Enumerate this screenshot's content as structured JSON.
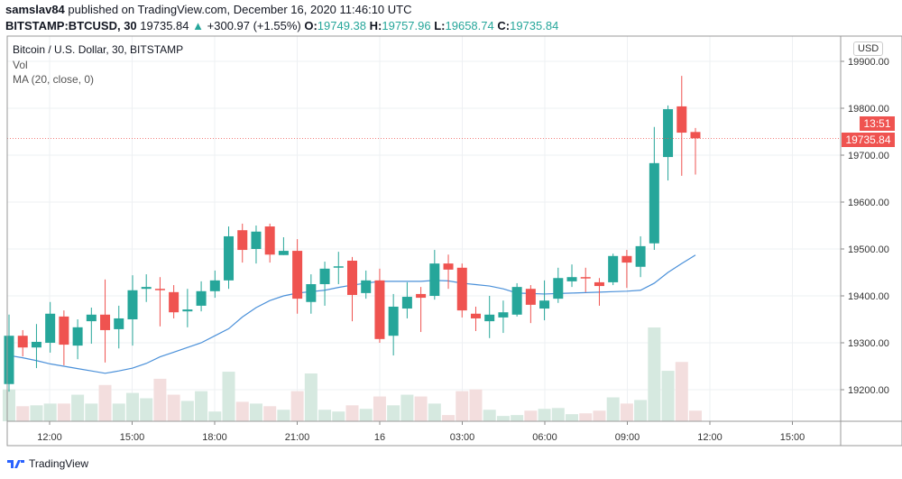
{
  "header": {
    "author": "samslav84",
    "published": "published on TradingView.com, December 16, 2020 11:46:10 UTC",
    "symbol": "BITSTAMP:BTCUSD, 30",
    "last": "19735.84",
    "change": "+300.97 (+1.55%)",
    "o_label": "O:",
    "o": "19749.38",
    "h_label": "H:",
    "h": "19757.96",
    "l_label": "L:",
    "l": "19658.74",
    "c_label": "C:",
    "c": "19735.84"
  },
  "legend": {
    "title": "Bitcoin / U.S. Dollar, 30, BITSTAMP",
    "vol": "Vol",
    "ma": "MA (20, close, 0)"
  },
  "currency": "USD",
  "price_label": "19735.84",
  "countdown": "13:51",
  "logo_text": "TradingView",
  "colors": {
    "up": "#26a69a",
    "down": "#ef5350",
    "ma": "#4a90d9",
    "up_vol": "#d6e9e0",
    "down_vol": "#f3dede"
  },
  "chart_data": {
    "type": "candlestick",
    "interval_minutes": 30,
    "ylim": [
      19130,
      19960
    ],
    "y_ticks": [
      "19200.00",
      "19300.00",
      "19400.00",
      "19500.00",
      "19600.00",
      "19700.00",
      "19800.00",
      "19900.00"
    ],
    "x_ticks": [
      "12:00",
      "15:00",
      "18:00",
      "21:00",
      "16",
      "03:00",
      "06:00",
      "09:00",
      "12:00",
      "15:00"
    ],
    "first_candle": "Dec 15 10:30",
    "grid": true,
    "candles": [
      [
        19212,
        19360,
        19196,
        19315
      ],
      [
        19315,
        19327,
        19271,
        19290
      ],
      [
        19290,
        19340,
        19246,
        19302
      ],
      [
        19300,
        19387,
        19279,
        19362
      ],
      [
        19356,
        19369,
        19252,
        19296
      ],
      [
        19294,
        19350,
        19265,
        19333
      ],
      [
        19346,
        19375,
        19298,
        19360
      ],
      [
        19360,
        19435,
        19258,
        19327
      ],
      [
        19329,
        19379,
        19288,
        19352
      ],
      [
        19350,
        19444,
        19294,
        19412
      ],
      [
        19415,
        19446,
        19387,
        19419
      ],
      [
        19415,
        19440,
        19335,
        19413
      ],
      [
        19408,
        19423,
        19352,
        19365
      ],
      [
        19367,
        19415,
        19333,
        19371
      ],
      [
        19379,
        19431,
        19367,
        19410
      ],
      [
        19410,
        19454,
        19396,
        19433
      ],
      [
        19433,
        19548,
        19415,
        19527
      ],
      [
        19540,
        19554,
        19471,
        19498
      ],
      [
        19500,
        19550,
        19469,
        19537
      ],
      [
        19548,
        19554,
        19471,
        19488
      ],
      [
        19487,
        19525,
        19487,
        19496
      ],
      [
        19496,
        19521,
        19362,
        19394
      ],
      [
        19387,
        19446,
        19362,
        19425
      ],
      [
        19425,
        19473,
        19379,
        19458
      ],
      [
        19462,
        19494,
        19425,
        19463
      ],
      [
        19475,
        19483,
        19346,
        19402
      ],
      [
        19406,
        19454,
        19394,
        19433
      ],
      [
        19433,
        19458,
        19300,
        19308
      ],
      [
        19315,
        19404,
        19273,
        19377
      ],
      [
        19373,
        19429,
        19352,
        19398
      ],
      [
        19404,
        19419,
        19323,
        19396
      ],
      [
        19400,
        19498,
        19392,
        19469
      ],
      [
        19469,
        19488,
        19415,
        19456
      ],
      [
        19460,
        19469,
        19354,
        19369
      ],
      [
        19362,
        19377,
        19325,
        19352
      ],
      [
        19346,
        19400,
        19310,
        19360
      ],
      [
        19354,
        19390,
        19321,
        19365
      ],
      [
        19360,
        19427,
        19356,
        19419
      ],
      [
        19415,
        19423,
        19342,
        19381
      ],
      [
        19373,
        19433,
        19348,
        19390
      ],
      [
        19394,
        19460,
        19385,
        19438
      ],
      [
        19431,
        19467,
        19419,
        19440
      ],
      [
        19440,
        19460,
        19408,
        19438
      ],
      [
        19429,
        19438,
        19379,
        19421
      ],
      [
        19429,
        19490,
        19423,
        19485
      ],
      [
        19485,
        19498,
        19417,
        19471
      ],
      [
        19462,
        19527,
        19440,
        19506
      ],
      [
        19512,
        19760,
        19498,
        19683
      ],
      [
        19696,
        19806,
        19646,
        19798
      ],
      [
        19804,
        19869,
        19656,
        19748
      ],
      [
        19749.38,
        19757.96,
        19658.74,
        19735.84
      ]
    ],
    "volume": [
      36,
      17,
      18,
      20,
      20,
      30,
      20,
      41,
      20,
      32,
      26,
      48,
      30,
      23,
      34,
      11,
      56,
      22,
      20,
      17,
      13,
      34,
      54,
      13,
      11,
      18,
      14,
      28,
      18,
      30,
      28,
      20,
      7,
      34,
      36,
      13,
      6,
      7,
      12,
      14,
      15,
      8,
      9,
      12,
      27,
      20,
      24,
      106,
      57,
      67,
      12
    ],
    "ma20": [
      19273,
      19268,
      19262,
      19255,
      19250,
      19245,
      19240,
      19235,
      19240,
      19246,
      19256,
      19270,
      19280,
      19290,
      19300,
      19315,
      19330,
      19355,
      19375,
      19390,
      19400,
      19406,
      19409,
      19412,
      19418,
      19423,
      19427,
      19431,
      19431,
      19431,
      19431,
      19433,
      19432,
      19427,
      19424,
      19421,
      19415,
      19406,
      19405,
      19404,
      19405,
      19406,
      19407,
      19408,
      19409,
      19410,
      19412,
      19427,
      19450,
      19469,
      19487
    ],
    "current_price": 19735.84
  }
}
